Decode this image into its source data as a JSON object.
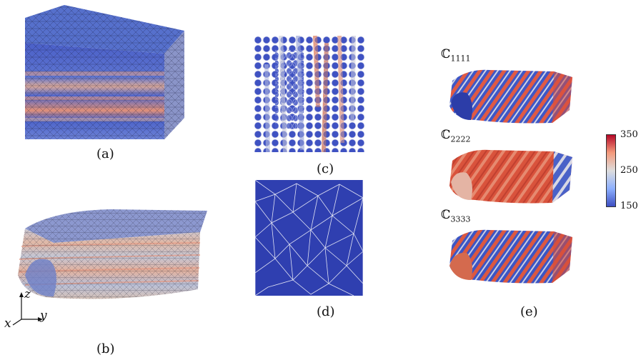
{
  "panels": {
    "a": {
      "caption": "(a)"
    },
    "b": {
      "caption": "(b)"
    },
    "c": {
      "caption": "(c)"
    },
    "d": {
      "caption": "(d)"
    },
    "e": {
      "caption": "(e)"
    }
  },
  "axes": {
    "x": "x",
    "y": "y",
    "z": "z"
  },
  "moduli": [
    {
      "symbol": "ℂ",
      "sub": "1111"
    },
    {
      "symbol": "ℂ",
      "sub": "2222"
    },
    {
      "symbol": "ℂ",
      "sub": "3333"
    }
  ],
  "colorbar": {
    "max": "350",
    "mid": "250",
    "min": "150",
    "colors": {
      "low": "#3b4cc0",
      "mid": "#dddddd",
      "high": "#b40426"
    }
  }
}
